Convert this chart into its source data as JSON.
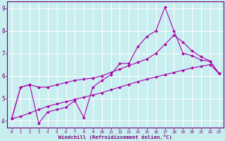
{
  "xlabel": "Windchill (Refroidissement éolien,°C)",
  "bg_color": "#c8eef0",
  "grid_color": "#ffffff",
  "line_color": "#aa00aa",
  "xlim": [
    -0.5,
    23.5
  ],
  "ylim": [
    3.7,
    9.3
  ],
  "yticks": [
    4,
    5,
    6,
    7,
    8,
    9
  ],
  "xticks": [
    0,
    1,
    2,
    3,
    4,
    5,
    6,
    7,
    8,
    9,
    10,
    11,
    12,
    13,
    14,
    15,
    16,
    17,
    18,
    19,
    20,
    21,
    22,
    23
  ],
  "lines": [
    {
      "x": [
        0,
        1,
        2,
        3,
        4,
        5,
        6,
        7,
        8,
        9,
        10,
        11,
        12,
        13,
        14,
        15,
        16,
        17,
        18,
        19,
        20,
        21,
        22,
        23
      ],
      "y": [
        4.1,
        5.5,
        5.6,
        3.9,
        4.4,
        4.5,
        4.6,
        4.9,
        4.15,
        5.5,
        5.8,
        6.05,
        6.55,
        6.55,
        7.3,
        7.75,
        8.0,
        9.05,
        8.0,
        7.0,
        6.9,
        6.7,
        6.65,
        6.1
      ]
    },
    {
      "x": [
        0,
        1,
        2,
        3,
        4,
        5,
        6,
        7,
        8,
        9,
        10,
        11,
        12,
        13,
        14,
        15,
        16,
        17,
        18,
        19,
        20,
        21,
        22,
        23
      ],
      "y": [
        4.1,
        5.5,
        5.6,
        5.5,
        5.5,
        5.6,
        5.7,
        5.8,
        5.85,
        5.9,
        6.0,
        6.15,
        6.3,
        6.45,
        6.6,
        6.75,
        7.0,
        7.4,
        7.8,
        7.5,
        7.1,
        6.85,
        6.65,
        6.1
      ]
    },
    {
      "x": [
        0,
        1,
        2,
        3,
        4,
        5,
        6,
        7,
        8,
        9,
        10,
        11,
        12,
        13,
        14,
        15,
        16,
        17,
        18,
        19,
        20,
        21,
        22,
        23
      ],
      "y": [
        4.1,
        4.2,
        4.35,
        4.5,
        4.65,
        4.75,
        4.85,
        4.95,
        5.05,
        5.15,
        5.25,
        5.38,
        5.5,
        5.62,
        5.74,
        5.85,
        5.95,
        6.05,
        6.15,
        6.25,
        6.35,
        6.42,
        6.5,
        6.1
      ]
    }
  ]
}
